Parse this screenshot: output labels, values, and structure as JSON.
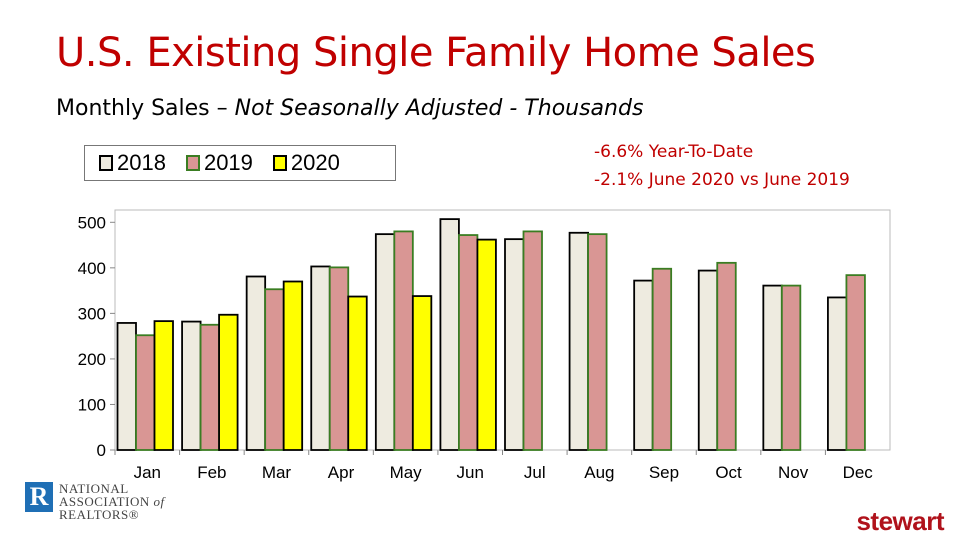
{
  "title": "U.S. Existing Single Family Home Sales",
  "subtitle_plain": "Monthly Sales – ",
  "subtitle_italic": "Not Seasonally Adjusted - Thousands",
  "annotations": [
    "-6.6% Year-To-Date",
    "-2.1% June 2020 vs June 2019"
  ],
  "logos": {
    "nar": "NATIONAL ASSOCIATION of REALTORS®",
    "stewart": "stewart"
  },
  "chart_data": {
    "type": "bar",
    "categories": [
      "Jan",
      "Feb",
      "Mar",
      "Apr",
      "May",
      "Jun",
      "Jul",
      "Aug",
      "Sep",
      "Oct",
      "Nov",
      "Dec"
    ],
    "series": [
      {
        "name": "2018",
        "color": "#eeebe0",
        "stroke": "#000000",
        "values": [
          279,
          282,
          381,
          403,
          474,
          507,
          463,
          477,
          372,
          394,
          361,
          335
        ]
      },
      {
        "name": "2019",
        "color": "#d99694",
        "stroke": "#3a7d22",
        "values": [
          252,
          275,
          353,
          401,
          480,
          472,
          480,
          474,
          398,
          411,
          361,
          384
        ]
      },
      {
        "name": "2020",
        "color": "#ffff00",
        "stroke": "#000000",
        "values": [
          283,
          297,
          370,
          337,
          338,
          462,
          null,
          null,
          null,
          null,
          null,
          null
        ]
      }
    ],
    "yticks": [
      0,
      100,
      200,
      300,
      400,
      500
    ],
    "ylim": [
      0,
      520
    ],
    "legend": "top-left",
    "grid": false
  }
}
